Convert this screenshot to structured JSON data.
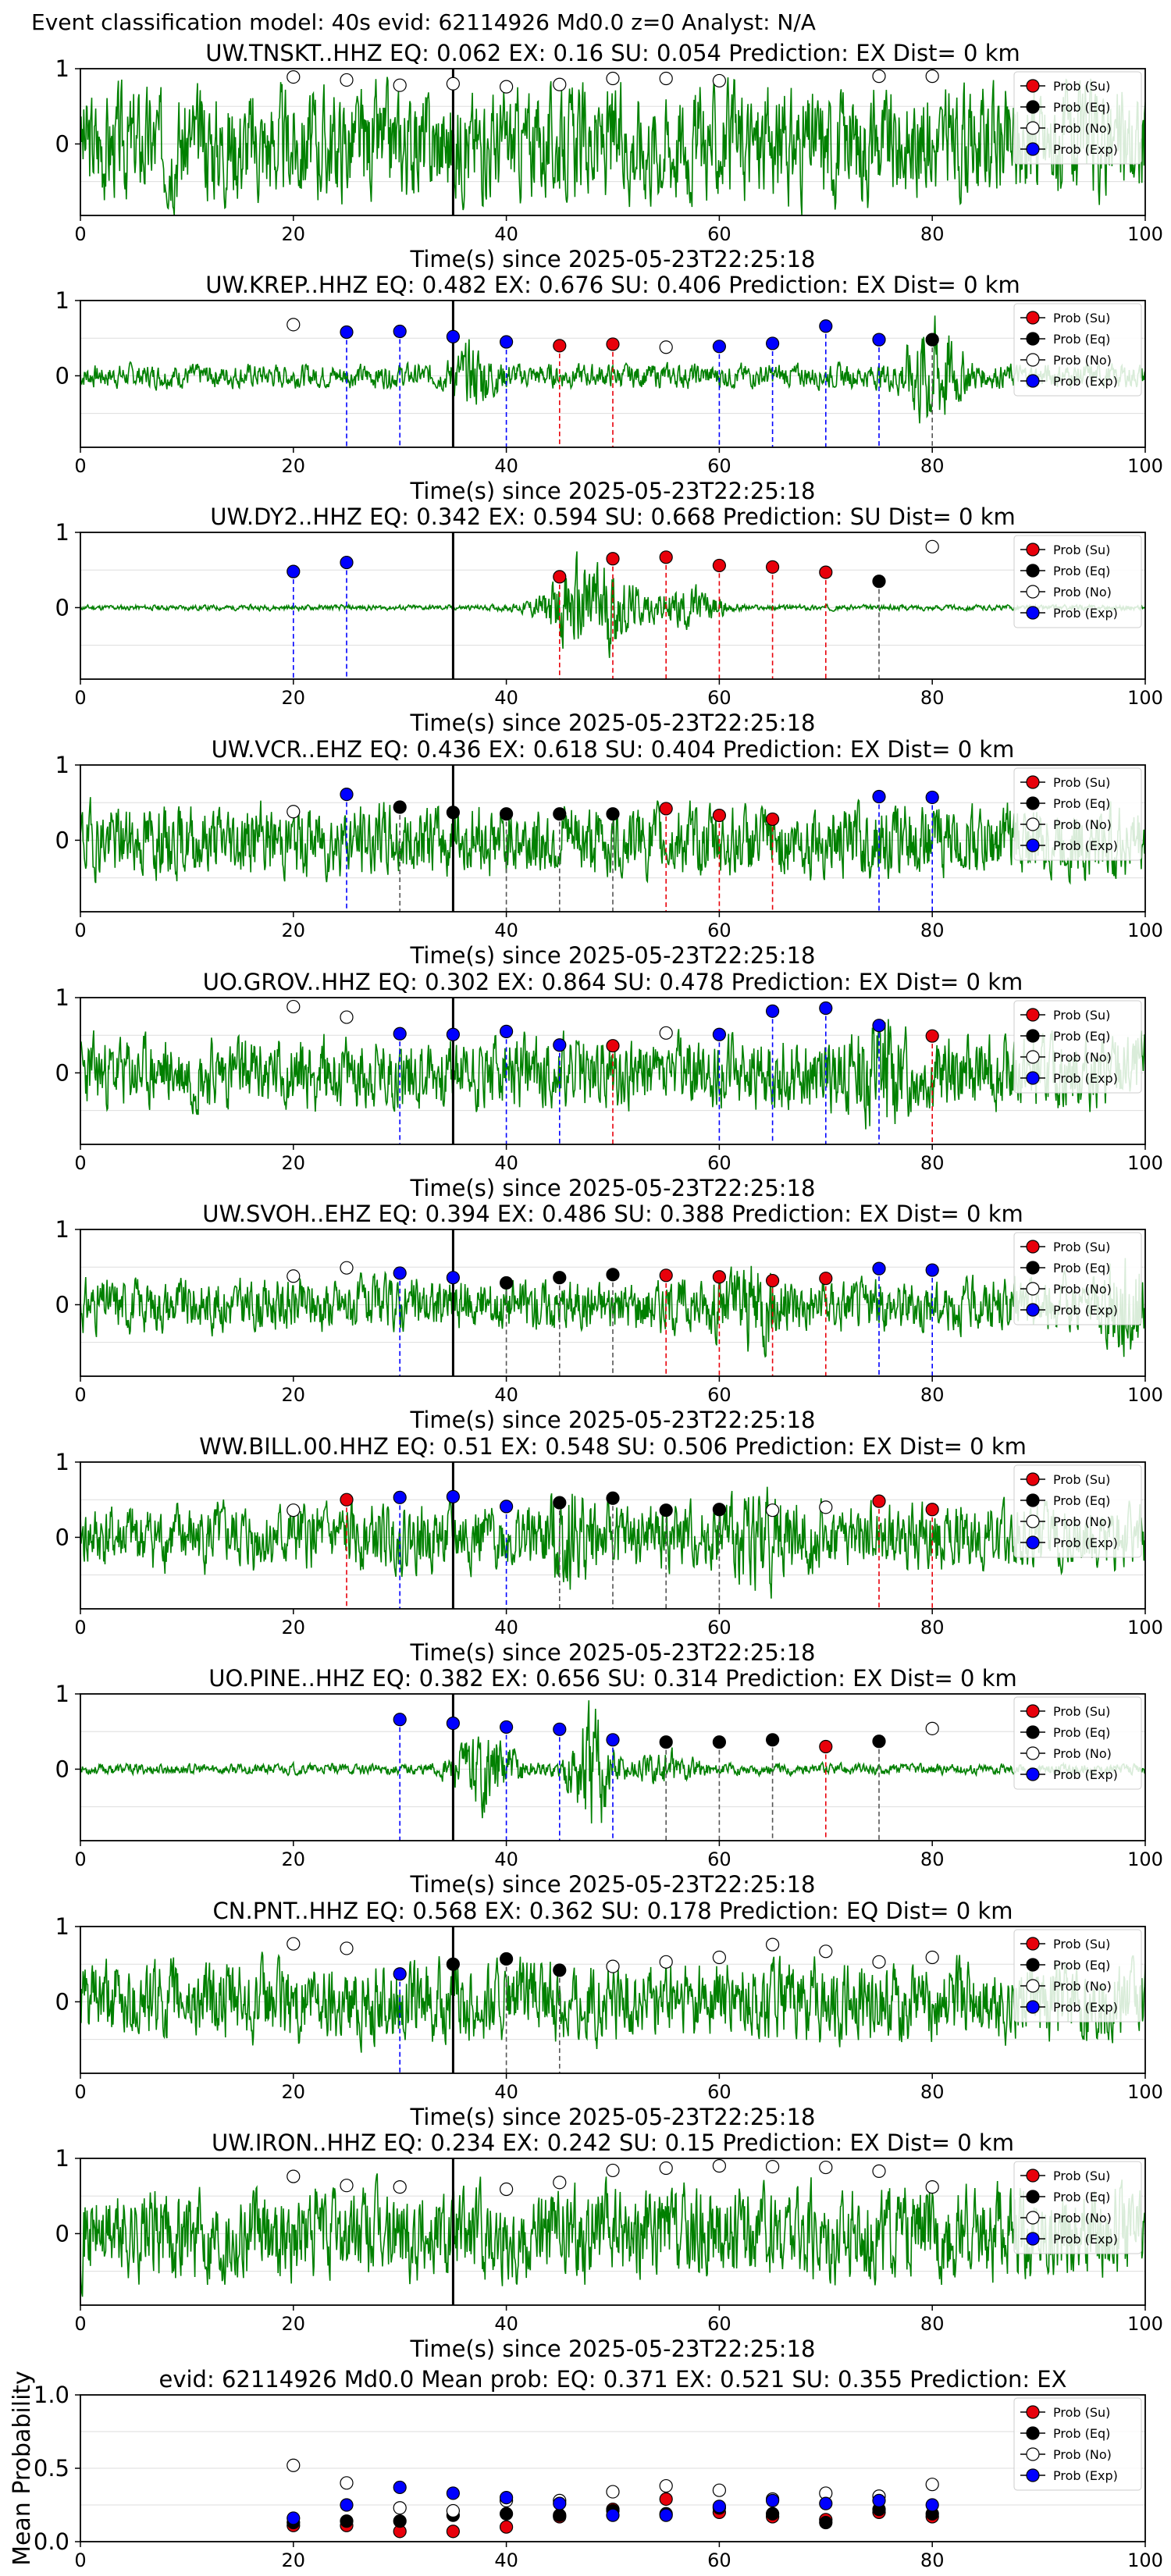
{
  "suptitle": "Event classification model: 40s evid: 62114926 Md0.0 z=0 Analyst: N/A",
  "legend": [
    "Prob (Su)",
    "Prob (Eq)",
    "Prob (No)",
    "Prob (Exp)"
  ],
  "colors": {
    "Su": "#e8000b",
    "Eq": "#000000",
    "No": "#ffffff",
    "Exp": "#0000ff",
    "wave": "#008000",
    "ref_line": "#000000"
  },
  "chart_data": [
    {
      "type": "line",
      "title": "UW.TNSKT..HHZ   EQ: 0.062  EX: 0.16  SU: 0.054   Prediction: EX    Dist= 0 km",
      "xlabel": "Time(s) since 2025-05-23T22:25:18",
      "xlim": [
        0,
        100
      ],
      "xticks": [
        "0",
        "20",
        "40",
        "60",
        "80",
        "100"
      ],
      "yticks": [
        "1",
        "0"
      ],
      "ref_time": 35,
      "windows": [
        {
          "t": 20,
          "cls": "No",
          "p": 0.89
        },
        {
          "t": 25,
          "cls": "No",
          "p": 0.85
        },
        {
          "t": 30,
          "cls": "No",
          "p": 0.78
        },
        {
          "t": 35,
          "cls": "No",
          "p": 0.8
        },
        {
          "t": 40,
          "cls": "No",
          "p": 0.76
        },
        {
          "t": 45,
          "cls": "No",
          "p": 0.79
        },
        {
          "t": 50,
          "cls": "No",
          "p": 0.87
        },
        {
          "t": 55,
          "cls": "No",
          "p": 0.87
        },
        {
          "t": 60,
          "cls": "No",
          "p": 0.84
        },
        {
          "t": 75,
          "cls": "No",
          "p": 0.9
        },
        {
          "t": 80,
          "cls": "No",
          "p": 0.9
        }
      ],
      "waveform": {
        "amp": 0.85,
        "seed": 3,
        "bursts": []
      }
    },
    {
      "type": "line",
      "title": "UW.KREP..HHZ   EQ: 0.482  EX: 0.676  SU: 0.406   Prediction: EX    Dist= 0 km",
      "xlabel": "Time(s) since 2025-05-23T22:25:18",
      "xlim": [
        0,
        100
      ],
      "xticks": [
        "0",
        "20",
        "40",
        "60",
        "80",
        "100"
      ],
      "yticks": [
        "1",
        "0"
      ],
      "ref_time": 35,
      "windows": [
        {
          "t": 20,
          "cls": "No",
          "p": 0.68
        },
        {
          "t": 25,
          "cls": "Exp",
          "p": 0.58
        },
        {
          "t": 30,
          "cls": "Exp",
          "p": 0.59
        },
        {
          "t": 35,
          "cls": "Exp",
          "p": 0.52
        },
        {
          "t": 40,
          "cls": "Exp",
          "p": 0.45
        },
        {
          "t": 45,
          "cls": "Su",
          "p": 0.4
        },
        {
          "t": 50,
          "cls": "Su",
          "p": 0.42
        },
        {
          "t": 55,
          "cls": "No",
          "p": 0.38
        },
        {
          "t": 60,
          "cls": "Exp",
          "p": 0.39
        },
        {
          "t": 65,
          "cls": "Exp",
          "p": 0.43
        },
        {
          "t": 70,
          "cls": "Exp",
          "p": 0.66
        },
        {
          "t": 75,
          "cls": "Exp",
          "p": 0.48
        },
        {
          "t": 80,
          "cls": "Eq",
          "p": 0.48
        }
      ],
      "waveform": {
        "amp": 0.18,
        "seed": 7,
        "bursts": [
          {
            "c": 37,
            "w": 2,
            "a": 0.35
          },
          {
            "c": 80,
            "w": 2.5,
            "a": 0.75
          }
        ]
      }
    },
    {
      "type": "line",
      "title": "UW.DY2..HHZ   EQ: 0.342  EX: 0.594  SU: 0.668   Prediction: SU    Dist= 0 km",
      "xlabel": "Time(s) since 2025-05-23T22:25:18",
      "xlim": [
        0,
        100
      ],
      "xticks": [
        "0",
        "20",
        "40",
        "60",
        "80",
        "100"
      ],
      "yticks": [
        "1",
        "0"
      ],
      "ref_time": 35,
      "windows": [
        {
          "t": 20,
          "cls": "Exp",
          "p": 0.48
        },
        {
          "t": 25,
          "cls": "Exp",
          "p": 0.6
        },
        {
          "t": 45,
          "cls": "Su",
          "p": 0.41
        },
        {
          "t": 50,
          "cls": "Su",
          "p": 0.65
        },
        {
          "t": 55,
          "cls": "Su",
          "p": 0.67
        },
        {
          "t": 60,
          "cls": "Su",
          "p": 0.56
        },
        {
          "t": 65,
          "cls": "Su",
          "p": 0.54
        },
        {
          "t": 70,
          "cls": "Su",
          "p": 0.47
        },
        {
          "t": 75,
          "cls": "Eq",
          "p": 0.35
        },
        {
          "t": 80,
          "cls": "No",
          "p": 0.81
        }
      ],
      "waveform": {
        "amp": 0.04,
        "seed": 11,
        "bursts": [
          {
            "c": 48,
            "w": 4,
            "a": 0.8
          },
          {
            "c": 57,
            "w": 3,
            "a": 0.3
          }
        ]
      }
    },
    {
      "type": "line",
      "title": "UW.VCR..EHZ   EQ: 0.436  EX: 0.618  SU: 0.404   Prediction: EX    Dist= 0 km",
      "xlabel": "Time(s) since 2025-05-23T22:25:18",
      "xlim": [
        0,
        100
      ],
      "xticks": [
        "0",
        "20",
        "40",
        "60",
        "80",
        "100"
      ],
      "yticks": [
        "1",
        "0"
      ],
      "ref_time": 35,
      "windows": [
        {
          "t": 20,
          "cls": "No",
          "p": 0.38
        },
        {
          "t": 25,
          "cls": "Exp",
          "p": 0.61
        },
        {
          "t": 30,
          "cls": "Eq",
          "p": 0.44
        },
        {
          "t": 35,
          "cls": "Eq",
          "p": 0.37
        },
        {
          "t": 40,
          "cls": "Eq",
          "p": 0.35
        },
        {
          "t": 45,
          "cls": "Eq",
          "p": 0.35
        },
        {
          "t": 50,
          "cls": "Eq",
          "p": 0.35
        },
        {
          "t": 55,
          "cls": "Su",
          "p": 0.42
        },
        {
          "t": 60,
          "cls": "Su",
          "p": 0.33
        },
        {
          "t": 65,
          "cls": "Su",
          "p": 0.28
        },
        {
          "t": 75,
          "cls": "Exp",
          "p": 0.58
        },
        {
          "t": 80,
          "cls": "Exp",
          "p": 0.57
        }
      ],
      "waveform": {
        "amp": 0.55,
        "seed": 19,
        "bursts": []
      }
    },
    {
      "type": "line",
      "title": "UO.GROV..HHZ   EQ: 0.302  EX: 0.864  SU: 0.478   Prediction: EX    Dist= 0 km",
      "xlabel": "Time(s) since 2025-05-23T22:25:18",
      "xlim": [
        0,
        100
      ],
      "xticks": [
        "0",
        "20",
        "40",
        "60",
        "80",
        "100"
      ],
      "yticks": [
        "1",
        "0"
      ],
      "ref_time": 35,
      "windows": [
        {
          "t": 20,
          "cls": "No",
          "p": 0.88
        },
        {
          "t": 25,
          "cls": "No",
          "p": 0.74
        },
        {
          "t": 30,
          "cls": "Exp",
          "p": 0.52
        },
        {
          "t": 35,
          "cls": "Exp",
          "p": 0.51
        },
        {
          "t": 40,
          "cls": "Exp",
          "p": 0.55
        },
        {
          "t": 45,
          "cls": "Exp",
          "p": 0.37
        },
        {
          "t": 50,
          "cls": "Su",
          "p": 0.36
        },
        {
          "t": 55,
          "cls": "No",
          "p": 0.53
        },
        {
          "t": 60,
          "cls": "Exp",
          "p": 0.51
        },
        {
          "t": 65,
          "cls": "Exp",
          "p": 0.82
        },
        {
          "t": 70,
          "cls": "Exp",
          "p": 0.86
        },
        {
          "t": 75,
          "cls": "Exp",
          "p": 0.63
        },
        {
          "t": 80,
          "cls": "Su",
          "p": 0.49
        }
      ],
      "waveform": {
        "amp": 0.55,
        "seed": 23,
        "bursts": [
          {
            "c": 75,
            "w": 2,
            "a": 0.5
          }
        ]
      }
    },
    {
      "type": "line",
      "title": "UW.SVOH..EHZ   EQ: 0.394  EX: 0.486  SU: 0.388   Prediction: EX    Dist= 0 km",
      "xlabel": "Time(s) since 2025-05-23T22:25:18",
      "xlim": [
        0,
        100
      ],
      "xticks": [
        "0",
        "20",
        "40",
        "60",
        "80",
        "100"
      ],
      "yticks": [
        "1",
        "0"
      ],
      "ref_time": 35,
      "windows": [
        {
          "t": 20,
          "cls": "No",
          "p": 0.38
        },
        {
          "t": 25,
          "cls": "No",
          "p": 0.49
        },
        {
          "t": 30,
          "cls": "Exp",
          "p": 0.42
        },
        {
          "t": 35,
          "cls": "Exp",
          "p": 0.36
        },
        {
          "t": 40,
          "cls": "Eq",
          "p": 0.29
        },
        {
          "t": 45,
          "cls": "Eq",
          "p": 0.36
        },
        {
          "t": 50,
          "cls": "Eq",
          "p": 0.4
        },
        {
          "t": 55,
          "cls": "Su",
          "p": 0.39
        },
        {
          "t": 60,
          "cls": "Su",
          "p": 0.37
        },
        {
          "t": 65,
          "cls": "Su",
          "p": 0.32
        },
        {
          "t": 70,
          "cls": "Su",
          "p": 0.35
        },
        {
          "t": 75,
          "cls": "Exp",
          "p": 0.48
        },
        {
          "t": 80,
          "cls": "Exp",
          "p": 0.46
        }
      ],
      "waveform": {
        "amp": 0.4,
        "seed": 31,
        "bursts": [
          {
            "c": 63,
            "w": 3,
            "a": 0.35
          },
          {
            "c": 98,
            "w": 2,
            "a": 0.5
          }
        ]
      }
    },
    {
      "type": "line",
      "title": "WW.BILL.00.HHZ   EQ: 0.51  EX: 0.548  SU: 0.506   Prediction: EX    Dist= 0 km",
      "xlabel": "Time(s) since 2025-05-23T22:25:18",
      "xlim": [
        0,
        100
      ],
      "xticks": [
        "0",
        "20",
        "40",
        "60",
        "80",
        "100"
      ],
      "yticks": [
        "1",
        "0"
      ],
      "ref_time": 35,
      "windows": [
        {
          "t": 20,
          "cls": "No",
          "p": 0.36
        },
        {
          "t": 25,
          "cls": "Su",
          "p": 0.5
        },
        {
          "t": 30,
          "cls": "Exp",
          "p": 0.53
        },
        {
          "t": 35,
          "cls": "Exp",
          "p": 0.54
        },
        {
          "t": 40,
          "cls": "Exp",
          "p": 0.41
        },
        {
          "t": 45,
          "cls": "Eq",
          "p": 0.46
        },
        {
          "t": 50,
          "cls": "Eq",
          "p": 0.52
        },
        {
          "t": 55,
          "cls": "Eq",
          "p": 0.36
        },
        {
          "t": 60,
          "cls": "Eq",
          "p": 0.37
        },
        {
          "t": 65,
          "cls": "No",
          "p": 0.36
        },
        {
          "t": 70,
          "cls": "No",
          "p": 0.4
        },
        {
          "t": 75,
          "cls": "Su",
          "p": 0.48
        },
        {
          "t": 80,
          "cls": "Su",
          "p": 0.37
        }
      ],
      "waveform": {
        "amp": 0.5,
        "seed": 41,
        "bursts": [
          {
            "c": 46,
            "w": 2,
            "a": 0.4
          },
          {
            "c": 64,
            "w": 3,
            "a": 0.3
          }
        ]
      }
    },
    {
      "type": "line",
      "title": "UO.PINE..HHZ   EQ: 0.382  EX: 0.656  SU: 0.314   Prediction: EX    Dist= 0 km",
      "xlabel": "Time(s) since 2025-05-23T22:25:18",
      "xlim": [
        0,
        100
      ],
      "xticks": [
        "0",
        "20",
        "40",
        "60",
        "80",
        "100"
      ],
      "yticks": [
        "1",
        "0"
      ],
      "ref_time": 35,
      "windows": [
        {
          "t": 30,
          "cls": "Exp",
          "p": 0.66
        },
        {
          "t": 35,
          "cls": "Exp",
          "p": 0.61
        },
        {
          "t": 40,
          "cls": "Exp",
          "p": 0.56
        },
        {
          "t": 45,
          "cls": "Exp",
          "p": 0.53
        },
        {
          "t": 50,
          "cls": "Exp",
          "p": 0.39
        },
        {
          "t": 55,
          "cls": "Eq",
          "p": 0.36
        },
        {
          "t": 60,
          "cls": "Eq",
          "p": 0.36
        },
        {
          "t": 65,
          "cls": "Eq",
          "p": 0.39
        },
        {
          "t": 70,
          "cls": "Su",
          "p": 0.3
        },
        {
          "t": 75,
          "cls": "Eq",
          "p": 0.37
        },
        {
          "t": 80,
          "cls": "No",
          "p": 0.54
        }
      ],
      "waveform": {
        "amp": 0.08,
        "seed": 53,
        "bursts": [
          {
            "c": 38,
            "w": 3,
            "a": 0.55
          },
          {
            "c": 48,
            "w": 2,
            "a": 0.95
          },
          {
            "c": 55,
            "w": 3,
            "a": 0.2
          }
        ]
      }
    },
    {
      "type": "line",
      "title": "CN.PNT..HHZ   EQ: 0.568  EX: 0.362  SU: 0.178   Prediction: EQ    Dist= 0 km",
      "xlabel": "Time(s) since 2025-05-23T22:25:18",
      "xlim": [
        0,
        100
      ],
      "xticks": [
        "0",
        "20",
        "40",
        "60",
        "80",
        "100"
      ],
      "yticks": [
        "1",
        "0"
      ],
      "ref_time": 35,
      "windows": [
        {
          "t": 20,
          "cls": "No",
          "p": 0.77
        },
        {
          "t": 25,
          "cls": "No",
          "p": 0.71
        },
        {
          "t": 30,
          "cls": "Exp",
          "p": 0.37
        },
        {
          "t": 35,
          "cls": "Eq",
          "p": 0.5
        },
        {
          "t": 40,
          "cls": "Eq",
          "p": 0.57
        },
        {
          "t": 45,
          "cls": "Eq",
          "p": 0.42
        },
        {
          "t": 50,
          "cls": "No",
          "p": 0.47
        },
        {
          "t": 55,
          "cls": "No",
          "p": 0.53
        },
        {
          "t": 60,
          "cls": "No",
          "p": 0.59
        },
        {
          "t": 65,
          "cls": "No",
          "p": 0.76
        },
        {
          "t": 70,
          "cls": "No",
          "p": 0.67
        },
        {
          "t": 75,
          "cls": "No",
          "p": 0.53
        },
        {
          "t": 80,
          "cls": "No",
          "p": 0.59
        }
      ],
      "waveform": {
        "amp": 0.6,
        "seed": 61,
        "bursts": []
      }
    },
    {
      "type": "line",
      "title": "UW.IRON..HHZ   EQ: 0.234  EX: 0.242  SU: 0.15   Prediction: EX    Dist= 0 km",
      "xlabel": "Time(s) since 2025-05-23T22:25:18",
      "xlim": [
        0,
        100
      ],
      "xticks": [
        "0",
        "20",
        "40",
        "60",
        "80",
        "100"
      ],
      "yticks": [
        "1",
        "0"
      ],
      "ref_time": 35,
      "windows": [
        {
          "t": 20,
          "cls": "No",
          "p": 0.76
        },
        {
          "t": 25,
          "cls": "No",
          "p": 0.64
        },
        {
          "t": 30,
          "cls": "No",
          "p": 0.62
        },
        {
          "t": 40,
          "cls": "No",
          "p": 0.59
        },
        {
          "t": 45,
          "cls": "No",
          "p": 0.68
        },
        {
          "t": 50,
          "cls": "No",
          "p": 0.84
        },
        {
          "t": 55,
          "cls": "No",
          "p": 0.87
        },
        {
          "t": 60,
          "cls": "No",
          "p": 0.9
        },
        {
          "t": 65,
          "cls": "No",
          "p": 0.89
        },
        {
          "t": 70,
          "cls": "No",
          "p": 0.88
        },
        {
          "t": 75,
          "cls": "No",
          "p": 0.83
        },
        {
          "t": 80,
          "cls": "No",
          "p": 0.62
        }
      ],
      "waveform": {
        "amp": 0.7,
        "seed": 71,
        "bursts": []
      }
    },
    {
      "type": "scatter",
      "title": "evid: 62114926  Md0.0   Mean prob:   EQ: 0.371  EX: 0.521  SU: 0.355   Prediction: EX",
      "ylabel": "Mean Probability",
      "xlim": [
        0,
        100
      ],
      "ylim": [
        0,
        1
      ],
      "xticks": [
        "0",
        "20",
        "40",
        "60",
        "80",
        "100"
      ],
      "yticks": [
        "1.0",
        "0.5",
        "0.0"
      ],
      "series": [
        {
          "name": "Prob (Su)",
          "key": "Su",
          "x": [
            20,
            25,
            30,
            35,
            40,
            45,
            50,
            55,
            60,
            65,
            70,
            75,
            80
          ],
          "y": [
            0.11,
            0.11,
            0.07,
            0.07,
            0.1,
            0.17,
            0.22,
            0.29,
            0.2,
            0.17,
            0.15,
            0.2,
            0.17
          ]
        },
        {
          "name": "Prob (Eq)",
          "key": "Eq",
          "x": [
            20,
            25,
            30,
            35,
            40,
            45,
            50,
            55,
            60,
            65,
            70,
            75,
            80
          ],
          "y": [
            0.13,
            0.14,
            0.14,
            0.18,
            0.19,
            0.18,
            0.21,
            0.19,
            0.23,
            0.19,
            0.13,
            0.22,
            0.19
          ]
        },
        {
          "name": "Prob (No)",
          "key": "No",
          "x": [
            20,
            25,
            30,
            35,
            40,
            45,
            50,
            55,
            60,
            65,
            70,
            75,
            80
          ],
          "y": [
            0.52,
            0.4,
            0.23,
            0.21,
            0.28,
            0.28,
            0.34,
            0.38,
            0.35,
            0.29,
            0.33,
            0.31,
            0.39
          ]
        },
        {
          "name": "Prob (Exp)",
          "key": "Exp",
          "x": [
            20,
            25,
            30,
            35,
            40,
            45,
            50,
            55,
            60,
            65,
            70,
            75,
            80
          ],
          "y": [
            0.16,
            0.25,
            0.37,
            0.33,
            0.3,
            0.26,
            0.18,
            0.18,
            0.24,
            0.28,
            0.26,
            0.28,
            0.25
          ]
        }
      ]
    }
  ]
}
